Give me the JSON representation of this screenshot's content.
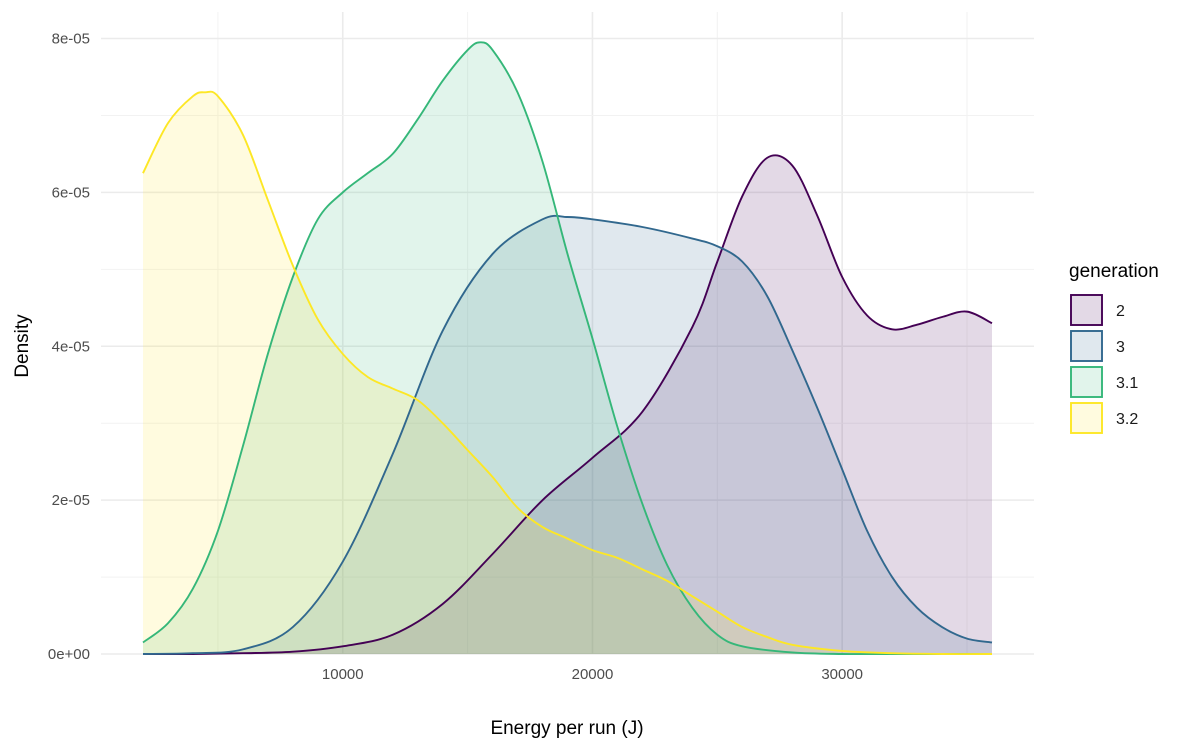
{
  "chart_data": {
    "type": "area",
    "xlabel": "Energy per run (J)",
    "ylabel": "Density",
    "xlim": [
      2000,
      36000
    ],
    "ylim": [
      0,
      8e-05
    ],
    "x_ticks": [
      10000,
      20000,
      30000
    ],
    "x_tick_labels": [
      "10000",
      "20000",
      "30000"
    ],
    "y_ticks": [
      0,
      2e-05,
      4e-05,
      6e-05,
      8e-05
    ],
    "y_tick_labels": [
      "0e+00",
      "2e-05",
      "4e-05",
      "6e-05",
      "8e-05"
    ],
    "grid": true,
    "legend": {
      "title": "generation",
      "placement": "right"
    },
    "series": [
      {
        "name": "2",
        "color": "#440154",
        "x": [
          2000,
          4000,
          6000,
          8000,
          10000,
          12000,
          14000,
          16000,
          18000,
          20000,
          22000,
          24000,
          25000,
          26000,
          27000,
          28000,
          29000,
          30000,
          31000,
          32000,
          33000,
          34000,
          35000,
          36000
        ],
        "y": [
          0,
          0,
          1e-07,
          3e-07,
          1e-06,
          2.5e-06,
          6.5e-06,
          1.3e-05,
          2e-05,
          2.55e-05,
          3.15e-05,
          4.25e-05,
          5.1e-05,
          5.95e-05,
          6.45e-05,
          6.35e-05,
          5.7e-05,
          4.9e-05,
          4.4e-05,
          4.22e-05,
          4.28e-05,
          4.38e-05,
          4.45e-05,
          4.3e-05
        ]
      },
      {
        "name": "3",
        "color": "#31688e",
        "x": [
          2000,
          4000,
          6000,
          8000,
          10000,
          12000,
          14000,
          16000,
          18000,
          19000,
          20000,
          22000,
          24000,
          25000,
          26000,
          27000,
          28000,
          29000,
          30000,
          31000,
          32000,
          33000,
          34000,
          35000,
          36000
        ],
        "y": [
          0,
          1e-07,
          6e-07,
          3.5e-06,
          1.2e-05,
          2.6e-05,
          4.2e-05,
          5.2e-05,
          5.65e-05,
          5.68e-05,
          5.65e-05,
          5.55e-05,
          5.4e-05,
          5.3e-05,
          5.1e-05,
          4.65e-05,
          3.95e-05,
          3.2e-05,
          2.4e-05,
          1.6e-05,
          1e-05,
          6e-06,
          3.5e-06,
          2e-06,
          1.5e-06
        ]
      },
      {
        "name": "3.1",
        "color": "#35b779",
        "x": [
          2000,
          3000,
          4000,
          5000,
          6000,
          7000,
          8000,
          9000,
          10000,
          11000,
          12000,
          13000,
          14000,
          15000,
          15500,
          16000,
          17000,
          18000,
          19000,
          20000,
          21000,
          22000,
          23000,
          24000,
          25000,
          26000,
          28000,
          30000,
          32000,
          36000
        ],
        "y": [
          1.5e-06,
          4e-06,
          8.5e-06,
          1.6e-05,
          2.7e-05,
          3.9e-05,
          4.9e-05,
          5.65e-05,
          6e-05,
          6.25e-05,
          6.5e-05,
          6.95e-05,
          7.45e-05,
          7.85e-05,
          7.95e-05,
          7.85e-05,
          7.3e-05,
          6.4e-05,
          5.2e-05,
          4.1e-05,
          2.95e-05,
          1.95e-05,
          1.15e-05,
          6e-06,
          2.5e-06,
          1e-06,
          2e-07,
          0,
          0,
          0
        ]
      },
      {
        "name": "3.2",
        "color": "#fde725",
        "x": [
          2000,
          3000,
          4000,
          4500,
          5000,
          6000,
          7000,
          8000,
          9000,
          10000,
          11000,
          12000,
          13000,
          14000,
          15000,
          16000,
          17000,
          18000,
          19000,
          20000,
          21000,
          22000,
          23000,
          24000,
          25000,
          26000,
          27000,
          28000,
          30000,
          32000,
          34000,
          36000
        ],
        "y": [
          6.25e-05,
          6.9e-05,
          7.25e-05,
          7.3e-05,
          7.25e-05,
          6.75e-05,
          5.9e-05,
          5.05e-05,
          4.35e-05,
          3.9e-05,
          3.6e-05,
          3.45e-05,
          3.3e-05,
          3e-05,
          2.65e-05,
          2.3e-05,
          1.9e-05,
          1.65e-05,
          1.5e-05,
          1.35e-05,
          1.25e-05,
          1.1e-05,
          9.5e-06,
          7.5e-06,
          5.5e-06,
          3.5e-06,
          2.2e-06,
          1.2e-06,
          4e-07,
          1e-07,
          0,
          0
        ]
      }
    ]
  }
}
